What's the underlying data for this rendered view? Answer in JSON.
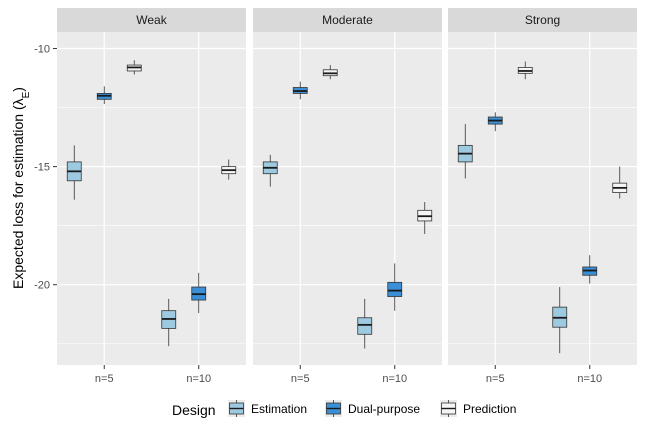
{
  "chart_data": {
    "type": "box",
    "ylabel": "Expected loss for estimation (λ",
    "ylabel_sub": "E",
    "ylabel_close": ")",
    "ylim": [
      -23.4,
      -9.3
    ],
    "yticks": [
      -10,
      -15,
      -20
    ],
    "ytick_labels": [
      "-10",
      "-15",
      "-20"
    ],
    "categories": [
      "n=5",
      "n=10"
    ],
    "facets": [
      {
        "label": "Weak",
        "boxes": [
          {
            "cat": 0,
            "design": "Estimation",
            "min": -16.4,
            "q1": -15.6,
            "median": -15.2,
            "q3": -14.8,
            "max": -14.1
          },
          {
            "cat": 0,
            "design": "Dual-purpose",
            "min": -12.35,
            "q1": -12.15,
            "median": -12.0,
            "q3": -11.9,
            "max": -11.6
          },
          {
            "cat": 0,
            "design": "Prediction",
            "min": -11.1,
            "q1": -10.95,
            "median": -10.8,
            "q3": -10.7,
            "max": -10.5
          },
          {
            "cat": 1,
            "design": "Estimation",
            "min": -22.6,
            "q1": -21.85,
            "median": -21.45,
            "q3": -21.1,
            "max": -20.6
          },
          {
            "cat": 1,
            "design": "Dual-purpose",
            "min": -21.2,
            "q1": -20.65,
            "median": -20.4,
            "q3": -20.1,
            "max": -19.5
          },
          {
            "cat": 1,
            "design": "Prediction",
            "min": -15.55,
            "q1": -15.3,
            "median": -15.15,
            "q3": -15.0,
            "max": -14.7
          }
        ]
      },
      {
        "label": "Moderate",
        "boxes": [
          {
            "cat": 0,
            "design": "Estimation",
            "min": -15.85,
            "q1": -15.3,
            "median": -15.05,
            "q3": -14.8,
            "max": -14.5
          },
          {
            "cat": 0,
            "design": "Dual-purpose",
            "min": -12.15,
            "q1": -11.9,
            "median": -11.8,
            "q3": -11.65,
            "max": -11.4
          },
          {
            "cat": 0,
            "design": "Prediction",
            "min": -11.3,
            "q1": -11.15,
            "median": -11.05,
            "q3": -10.9,
            "max": -10.7
          },
          {
            "cat": 1,
            "design": "Estimation",
            "min": -22.7,
            "q1": -22.1,
            "median": -21.7,
            "q3": -21.4,
            "max": -20.6
          },
          {
            "cat": 1,
            "design": "Dual-purpose",
            "min": -21.1,
            "q1": -20.5,
            "median": -20.25,
            "q3": -19.9,
            "max": -19.1
          },
          {
            "cat": 1,
            "design": "Prediction",
            "min": -17.85,
            "q1": -17.3,
            "median": -17.1,
            "q3": -16.85,
            "max": -16.5
          }
        ]
      },
      {
        "label": "Strong",
        "boxes": [
          {
            "cat": 0,
            "design": "Estimation",
            "min": -15.5,
            "q1": -14.8,
            "median": -14.45,
            "q3": -14.1,
            "max": -13.2
          },
          {
            "cat": 0,
            "design": "Dual-purpose",
            "min": -13.5,
            "q1": -13.2,
            "median": -13.05,
            "q3": -12.9,
            "max": -12.7
          },
          {
            "cat": 0,
            "design": "Prediction",
            "min": -11.3,
            "q1": -11.05,
            "median": -10.95,
            "q3": -10.8,
            "max": -10.55
          },
          {
            "cat": 1,
            "design": "Estimation",
            "min": -22.9,
            "q1": -21.8,
            "median": -21.4,
            "q3": -20.95,
            "max": -20.1
          },
          {
            "cat": 1,
            "design": "Dual-purpose",
            "min": -19.95,
            "q1": -19.6,
            "median": -19.4,
            "q3": -19.25,
            "max": -18.75
          },
          {
            "cat": 1,
            "design": "Prediction",
            "min": -16.35,
            "q1": -16.1,
            "median": -15.9,
            "q3": -15.7,
            "max": -15.0
          }
        ]
      }
    ],
    "legend": {
      "title": "Design",
      "position": "bottom",
      "items": [
        {
          "name": "Estimation",
          "color": "#9ecae1"
        },
        {
          "name": "Dual-purpose",
          "color": "#3a8fd6"
        },
        {
          "name": "Prediction",
          "color": "#f5f5f5"
        }
      ]
    },
    "colors": {
      "panel_bg": "#ebebeb",
      "strip_bg": "#d9d9d9",
      "grid": "#ffffff",
      "box_outline": "#333333"
    }
  }
}
